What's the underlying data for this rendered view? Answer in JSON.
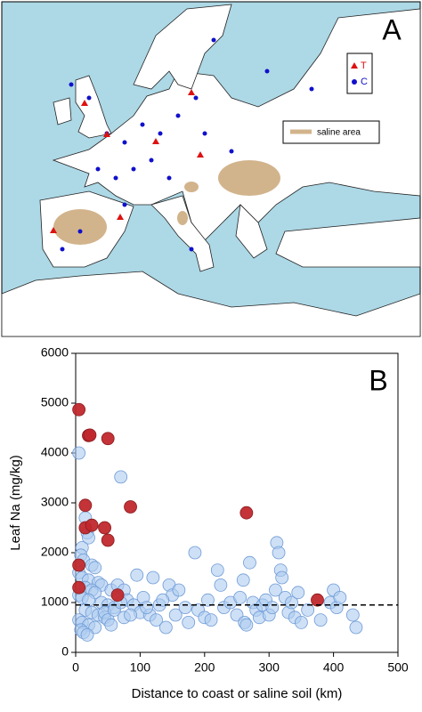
{
  "map": {
    "label": "A",
    "legend": [
      "T",
      "C"
    ],
    "saline_legend": "saline area"
  },
  "chart_data": {
    "type": "scatter",
    "label": "B",
    "xlabel": "Distance to coast or saline soil (km)",
    "ylabel": "Leaf Na (mg/kg)",
    "xlim": [
      0,
      500
    ],
    "xticks": [
      0,
      100,
      200,
      300,
      400,
      500
    ],
    "ylim": [
      0,
      6000
    ],
    "yticks": [
      0,
      1000,
      2000,
      3000,
      4000,
      5000,
      6000
    ],
    "hline": 950,
    "series": [
      {
        "color": "#aecbf0",
        "x": [
          5,
          70,
          15,
          18,
          20,
          10,
          8,
          12,
          25,
          30,
          5,
          10,
          20,
          35,
          40,
          15,
          25,
          30,
          5,
          10,
          20,
          40,
          50,
          60,
          15,
          25,
          35,
          45,
          5,
          10,
          20,
          30,
          8,
          12,
          18,
          55,
          65,
          75,
          80,
          90,
          100,
          95,
          105,
          115,
          120,
          125,
          130,
          140,
          145,
          150,
          155,
          160,
          170,
          175,
          185,
          190,
          200,
          205,
          210,
          220,
          225,
          230,
          240,
          250,
          255,
          260,
          262,
          265,
          270,
          275,
          280,
          285,
          290,
          295,
          300,
          305,
          310,
          312,
          315,
          318,
          320,
          325,
          330,
          335,
          340,
          345,
          350,
          360,
          380,
          395,
          400,
          405,
          410,
          430,
          435,
          45,
          50,
          55,
          60,
          70,
          75,
          85,
          110,
          135
        ],
        "values": [
          4000,
          3520,
          2700,
          2400,
          2300,
          2100,
          1950,
          1850,
          1750,
          1700,
          1600,
          1500,
          1450,
          1400,
          1350,
          1300,
          1250,
          1200,
          1150,
          1100,
          1050,
          1000,
          950,
          900,
          850,
          800,
          750,
          700,
          650,
          600,
          550,
          500,
          450,
          400,
          350,
          1250,
          1350,
          1250,
          1050,
          950,
          800,
          1550,
          1100,
          750,
          1500,
          650,
          950,
          500,
          1350,
          1150,
          750,
          1250,
          900,
          600,
          2000,
          850,
          700,
          1050,
          650,
          1650,
          1350,
          900,
          1000,
          750,
          1100,
          1450,
          600,
          550,
          1800,
          1000,
          850,
          700,
          950,
          1050,
          750,
          900,
          1250,
          2200,
          2000,
          1650,
          1500,
          1100,
          800,
          1000,
          700,
          1200,
          600,
          850,
          650,
          1000,
          1250,
          900,
          1100,
          750,
          500,
          800,
          650,
          550,
          850,
          1000,
          700,
          750,
          900,
          1050
        ]
      },
      {
        "color": "#c0282d",
        "x": [
          5,
          20,
          22,
          50,
          5,
          5,
          15,
          15,
          25,
          45,
          50,
          85,
          265,
          65,
          375
        ],
        "values": [
          4870,
          4350,
          4360,
          4290,
          1750,
          1300,
          2950,
          2500,
          2550,
          2500,
          2250,
          2920,
          2800,
          1150,
          1050
        ]
      }
    ]
  }
}
